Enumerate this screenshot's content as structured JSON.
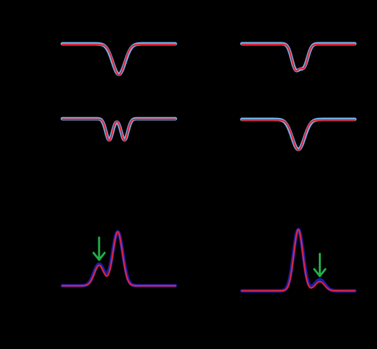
{
  "colors": {
    "background": "#000000",
    "measured_light": "#7ab8f0",
    "measured_dark": "#1f1fb0",
    "fit": "#e0243a",
    "arrow": "#1fb04a"
  },
  "chart_data": [
    {
      "type": "line",
      "panel": "top-left",
      "title": "",
      "xlabel": "",
      "ylabel": "",
      "xlim": [
        -1,
        1
      ],
      "ylim": [
        -0.15,
        1.1
      ],
      "grid": false,
      "series": [
        {
          "role": "measured",
          "color": "#7ab8f0",
          "baseline": 1.0,
          "dips": [
            {
              "center": 0.0,
              "depth": 0.86,
              "width": 0.11
            }
          ]
        },
        {
          "role": "fit",
          "color": "#e0243a",
          "baseline": 0.98,
          "dips": [
            {
              "center": 0.0,
              "depth": 0.86,
              "width": 0.1
            }
          ]
        }
      ]
    },
    {
      "type": "line",
      "panel": "top-right",
      "title": "",
      "xlabel": "",
      "ylabel": "",
      "xlim": [
        -1,
        1
      ],
      "ylim": [
        -0.15,
        1.1
      ],
      "grid": false,
      "series": [
        {
          "role": "measured",
          "color": "#7ab8f0",
          "baseline": 1.0,
          "dips": [
            {
              "center": -0.05,
              "depth": 0.7,
              "width": 0.07
            },
            {
              "center": 0.1,
              "depth": 0.62,
              "width": 0.07
            }
          ]
        },
        {
          "role": "fit",
          "color": "#e0243a",
          "baseline": 0.98,
          "dips": [
            {
              "center": -0.05,
              "depth": 0.72,
              "width": 0.065
            },
            {
              "center": 0.1,
              "depth": 0.64,
              "width": 0.065
            }
          ]
        }
      ]
    },
    {
      "type": "line",
      "panel": "middle-left",
      "title": "",
      "xlabel": "",
      "ylabel": "",
      "xlim": [
        -1,
        1
      ],
      "ylim": [
        -0.15,
        1.1
      ],
      "grid": false,
      "series": [
        {
          "role": "measured",
          "color": "#7ab8f0",
          "baseline": 1.0,
          "dips": [
            {
              "center": -0.17,
              "depth": 0.75,
              "width": 0.06
            },
            {
              "center": 0.1,
              "depth": 0.75,
              "width": 0.06
            }
          ]
        },
        {
          "role": "fit",
          "color": "#e0243a",
          "baseline": 0.98,
          "dips": [
            {
              "center": -0.17,
              "depth": 0.76,
              "width": 0.055
            },
            {
              "center": 0.1,
              "depth": 0.76,
              "width": 0.055
            }
          ]
        }
      ]
    },
    {
      "type": "line",
      "panel": "middle-right",
      "title": "",
      "xlabel": "",
      "ylabel": "",
      "xlim": [
        -1,
        1
      ],
      "ylim": [
        -0.15,
        1.1
      ],
      "grid": false,
      "series": [
        {
          "role": "measured",
          "color": "#7ab8f0",
          "baseline": 1.0,
          "dips": [
            {
              "center": 0.0,
              "depth": 0.86,
              "width": 0.11
            }
          ]
        },
        {
          "role": "fit",
          "color": "#e0243a",
          "baseline": 0.98,
          "dips": [
            {
              "center": 0.0,
              "depth": 0.86,
              "width": 0.1
            }
          ]
        }
      ]
    },
    {
      "type": "line",
      "panel": "bottom-left",
      "title": "",
      "xlabel": "",
      "ylabel": "",
      "xlim": [
        -1,
        1
      ],
      "ylim": [
        -0.1,
        1.1
      ],
      "grid": false,
      "series": [
        {
          "role": "measured",
          "color": "#1f1fb0",
          "baseline": 0.0,
          "peaks": [
            {
              "center": -0.35,
              "height": 0.38,
              "width": 0.09
            },
            {
              "center": -0.02,
              "height": 0.95,
              "width": 0.09
            }
          ]
        },
        {
          "role": "fit",
          "color": "#e0243a",
          "baseline": 0.0,
          "peaks": [
            {
              "center": -0.35,
              "height": 0.36,
              "width": 0.085
            },
            {
              "center": -0.02,
              "height": 0.95,
              "width": 0.085
            }
          ]
        }
      ],
      "annotations": [
        {
          "kind": "arrow",
          "x": -0.35,
          "color": "#1fb04a"
        }
      ]
    },
    {
      "type": "line",
      "panel": "bottom-right",
      "title": "",
      "xlabel": "",
      "ylabel": "",
      "xlim": [
        -1,
        1
      ],
      "ylim": [
        -0.1,
        1.1
      ],
      "grid": false,
      "series": [
        {
          "role": "measured",
          "color": "#1f1fb0",
          "baseline": 0.0,
          "peaks": [
            {
              "center": 0.0,
              "height": 1.0,
              "width": 0.085
            },
            {
              "center": 0.38,
              "height": 0.18,
              "width": 0.09
            }
          ]
        },
        {
          "role": "fit",
          "color": "#e0243a",
          "baseline": 0.0,
          "peaks": [
            {
              "center": 0.0,
              "height": 1.0,
              "width": 0.08
            },
            {
              "center": 0.38,
              "height": 0.15,
              "width": 0.085
            }
          ]
        }
      ],
      "annotations": [
        {
          "kind": "arrow",
          "x": 0.38,
          "color": "#1fb04a"
        }
      ]
    }
  ]
}
